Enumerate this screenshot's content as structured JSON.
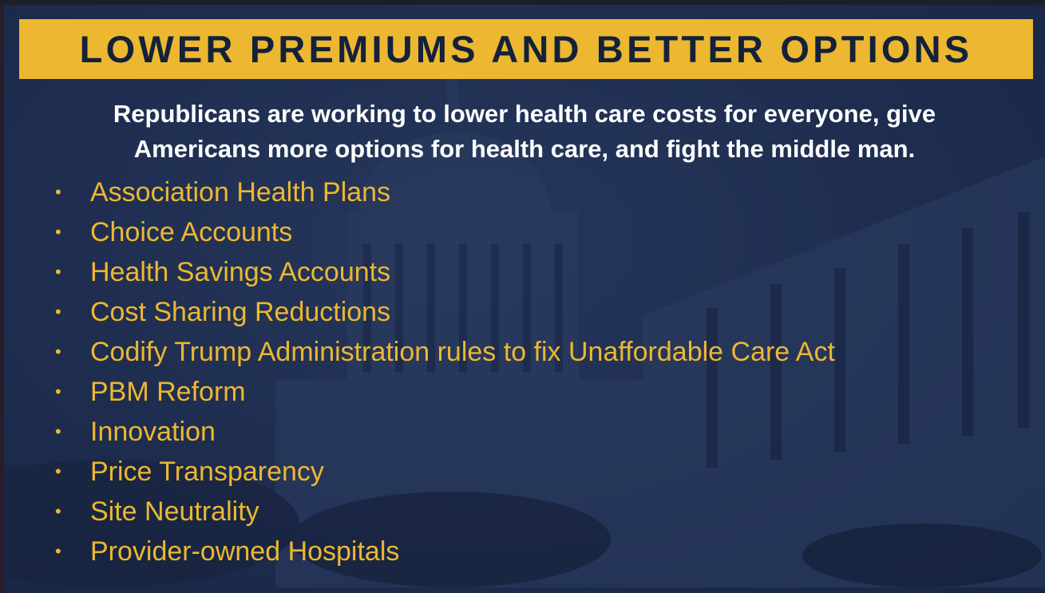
{
  "slide": {
    "title": "LOWER PREMIUMS AND BETTER OPTIONS",
    "intro_lines": [
      "Republicans are working to lower health care costs for everyone, give",
      "Americans more options for health care, and fight the middle man."
    ],
    "bullet_glyph": "•",
    "bullets": [
      "Association Health Plans",
      "Choice Accounts",
      "Health Savings Accounts",
      "Cost Sharing Reductions",
      "Codify Trump Administration rules to fix Unaffordable Care Act",
      "PBM Reform",
      "Innovation",
      "Price Transparency",
      "Site Neutrality",
      "Provider-owned Hospitals"
    ],
    "colors": {
      "banner": "#ecb731",
      "title_text": "#14213a",
      "background": "#1f2e50",
      "bullet_text": "#ecb731",
      "intro_text": "#ffffff"
    }
  }
}
